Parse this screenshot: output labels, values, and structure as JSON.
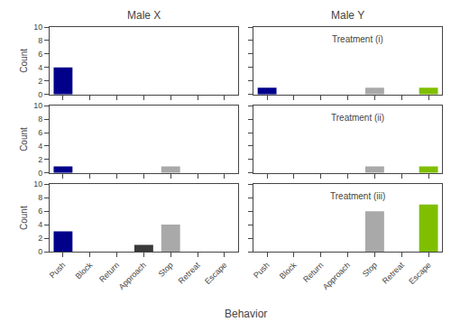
{
  "chart_data": [
    {
      "type": "bar",
      "title": "Male X",
      "ylabel": "Count",
      "tick_labels": "y",
      "grid": false,
      "categories": [
        "Push",
        "Block",
        "Return",
        "Approach",
        "Stop",
        "Retreat",
        "Escape"
      ],
      "values": [
        4,
        0,
        0,
        0,
        0,
        0,
        0
      ],
      "colors": [
        "#00008B",
        "#00008B",
        "#00008B",
        "#3a3a3a",
        "#A9A9A9",
        "#A9A9A9",
        "#7FBF00"
      ],
      "ylim": [
        0,
        10
      ],
      "yticks": [
        0,
        2,
        4,
        6,
        8,
        10
      ]
    },
    {
      "type": "bar",
      "title": "Male Y",
      "annotations": [
        "Treatment (i)"
      ],
      "tick_labels": false,
      "grid": false,
      "categories": [
        "Push",
        "Block",
        "Return",
        "Approach",
        "Stop",
        "Retreat",
        "Escape"
      ],
      "values": [
        1,
        0,
        0,
        0,
        1,
        0,
        1
      ],
      "colors": [
        "#00008B",
        "#00008B",
        "#00008B",
        "#3a3a3a",
        "#A9A9A9",
        "#A9A9A9",
        "#7FBF00"
      ],
      "ylim": [
        0,
        10
      ],
      "yticks": [
        0,
        2,
        4,
        6,
        8,
        10
      ]
    },
    {
      "type": "bar",
      "ylabel": "Count",
      "tick_labels": "y",
      "grid": false,
      "categories": [
        "Push",
        "Block",
        "Return",
        "Approach",
        "Stop",
        "Retreat",
        "Escape"
      ],
      "values": [
        1,
        0,
        0,
        0,
        1,
        0,
        0
      ],
      "colors": [
        "#00008B",
        "#00008B",
        "#00008B",
        "#3a3a3a",
        "#A9A9A9",
        "#A9A9A9",
        "#7FBF00"
      ],
      "ylim": [
        0,
        10
      ],
      "yticks": [
        0,
        2,
        4,
        6,
        8,
        10
      ]
    },
    {
      "type": "bar",
      "annotations": [
        "Treatment (ii)"
      ],
      "tick_labels": false,
      "grid": false,
      "categories": [
        "Push",
        "Block",
        "Return",
        "Approach",
        "Stop",
        "Retreat",
        "Escape"
      ],
      "values": [
        0,
        0,
        0,
        0,
        1,
        0,
        1
      ],
      "colors": [
        "#00008B",
        "#00008B",
        "#00008B",
        "#3a3a3a",
        "#A9A9A9",
        "#A9A9A9",
        "#7FBF00"
      ],
      "ylim": [
        0,
        10
      ],
      "yticks": [
        0,
        2,
        4,
        6,
        8,
        10
      ]
    },
    {
      "type": "bar",
      "ylabel": "Count",
      "xlabel": "Behavior",
      "grid": false,
      "categories": [
        "Push",
        "Block",
        "Return",
        "Approach",
        "Stop",
        "Retreat",
        "Escape"
      ],
      "values": [
        3,
        0,
        0,
        1,
        4,
        0,
        0
      ],
      "colors": [
        "#00008B",
        "#00008B",
        "#00008B",
        "#3a3a3a",
        "#A9A9A9",
        "#A9A9A9",
        "#7FBF00"
      ],
      "ylim": [
        0,
        10
      ],
      "yticks": [
        0,
        2,
        4,
        6,
        8,
        10
      ]
    },
    {
      "type": "bar",
      "annotations": [
        "Treatment (iii)"
      ],
      "tick_labels": "x",
      "grid": false,
      "categories": [
        "Push",
        "Block",
        "Return",
        "Approach",
        "Stop",
        "Retreat",
        "Escape"
      ],
      "values": [
        0,
        0,
        0,
        0,
        6,
        0,
        7
      ],
      "colors": [
        "#00008B",
        "#00008B",
        "#00008B",
        "#3a3a3a",
        "#A9A9A9",
        "#A9A9A9",
        "#7FBF00"
      ],
      "ylim": [
        0,
        10
      ],
      "yticks": [
        0,
        2,
        4,
        6,
        8,
        10
      ]
    }
  ]
}
